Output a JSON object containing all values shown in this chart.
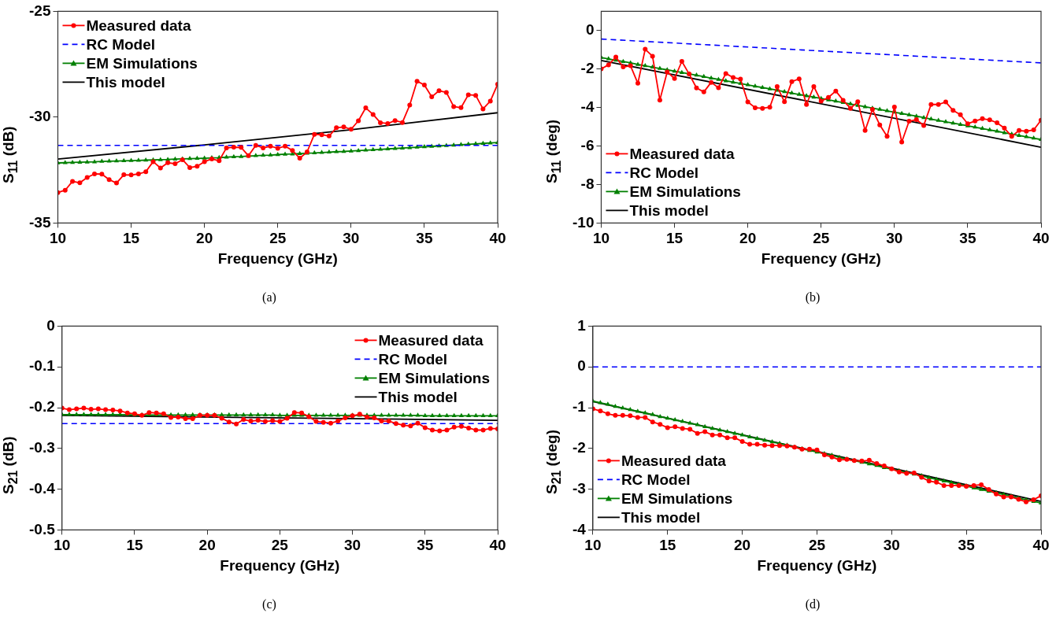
{
  "chart_data": [
    {
      "type": "line",
      "xlabel": "Frequency (GHz)",
      "ylabel": "S$_{11}$ (dB)",
      "annotations": [
        "(a)"
      ],
      "legend": "top left",
      "xlim": [
        10,
        40
      ],
      "xticks": [
        10,
        15,
        20,
        25,
        30,
        35,
        40
      ],
      "ylim": [
        -35,
        -25
      ],
      "yticks": [
        -35,
        -30,
        -25
      ],
      "x": [
        10,
        10.5,
        11,
        11.5,
        12,
        12.5,
        13,
        13.5,
        14,
        14.5,
        15,
        15.5,
        16,
        16.5,
        17,
        17.5,
        18,
        18.5,
        19,
        19.5,
        20,
        20.5,
        21,
        21.5,
        22,
        22.5,
        23,
        23.5,
        24,
        24.5,
        25,
        25.5,
        26,
        26.5,
        27,
        27.5,
        28,
        28.5,
        29,
        29.5,
        30,
        30.5,
        31,
        31.5,
        32,
        32.5,
        33,
        33.5,
        34,
        34.5,
        35,
        35.5,
        36,
        36.5,
        37,
        37.5,
        38,
        38.5,
        39,
        39.5,
        40
      ],
      "series": [
        {
          "name": "Measured data",
          "color": "#ff0000",
          "marker": "circle",
          "line_style": "solid",
          "values": [
            -33.56,
            -33.45,
            -33.03,
            -33.1,
            -32.85,
            -32.68,
            -32.69,
            -32.95,
            -33.11,
            -32.72,
            -32.73,
            -32.68,
            -32.58,
            -32.1,
            -32.4,
            -32.15,
            -32.2,
            -32.01,
            -32.38,
            -32.32,
            -32.1,
            -31.97,
            -32.06,
            -31.45,
            -31.42,
            -31.43,
            -31.82,
            -31.33,
            -31.45,
            -31.37,
            -31.47,
            -31.37,
            -31.57,
            -31.94,
            -31.64,
            -30.81,
            -30.83,
            -30.89,
            -30.5,
            -30.46,
            -30.57,
            -30.17,
            -29.56,
            -29.87,
            -30.26,
            -30.3,
            -30.16,
            -30.25,
            -29.43,
            -28.3,
            -28.48,
            -29.04,
            -28.75,
            -28.83,
            -29.5,
            -29.55,
            -28.94,
            -28.97,
            -29.61,
            -29.24,
            -28.44
          ]
        },
        {
          "name": "RC Model",
          "color": "#0000ff",
          "marker": "none",
          "line_style": "dashed",
          "x": [
            10,
            40
          ],
          "values": [
            -31.33,
            -31.33
          ]
        },
        {
          "name": "EM Simulations",
          "color": "#008000",
          "marker": "triangle",
          "line_style": "solid",
          "values": [
            -32.16,
            -32.15,
            -32.14,
            -32.13,
            -32.12,
            -32.11,
            -32.09,
            -32.08,
            -32.07,
            -32.06,
            -32.05,
            -32.04,
            -32.03,
            -32.02,
            -32.01,
            -32.0,
            -31.98,
            -31.97,
            -31.96,
            -31.95,
            -31.94,
            -31.92,
            -31.91,
            -31.89,
            -31.87,
            -31.86,
            -31.84,
            -31.82,
            -31.8,
            -31.79,
            -31.77,
            -31.75,
            -31.74,
            -31.72,
            -31.7,
            -31.69,
            -31.67,
            -31.65,
            -31.63,
            -31.62,
            -31.6,
            -31.58,
            -31.56,
            -31.54,
            -31.52,
            -31.5,
            -31.48,
            -31.46,
            -31.44,
            -31.42,
            -31.4,
            -31.38,
            -31.36,
            -31.34,
            -31.32,
            -31.3,
            -31.28,
            -31.26,
            -31.24,
            -31.22,
            -31.2
          ]
        },
        {
          "name": "This model",
          "color": "#000000",
          "marker": "none",
          "line_style": "solid",
          "x": [
            10,
            20,
            30,
            40
          ],
          "values": [
            -31.98,
            -31.31,
            -30.59,
            -29.79
          ]
        }
      ]
    },
    {
      "type": "line",
      "xlabel": "Frequency (GHz)",
      "ylabel": "S$_{11}$ (deg)",
      "annotations": [
        "(b)"
      ],
      "legend": "bottom left",
      "xlim": [
        10,
        40
      ],
      "xticks": [
        10,
        15,
        20,
        25,
        30,
        35,
        40
      ],
      "ylim": [
        -10,
        1
      ],
      "yticks": [
        -10,
        -8,
        -6,
        -4,
        -2,
        0
      ],
      "x": [
        10,
        10.5,
        11,
        11.5,
        12,
        12.5,
        13,
        13.5,
        14,
        14.5,
        15,
        15.5,
        16,
        16.5,
        17,
        17.5,
        18,
        18.5,
        19,
        19.5,
        20,
        20.5,
        21,
        21.5,
        22,
        22.5,
        23,
        23.5,
        24,
        24.5,
        25,
        25.5,
        26,
        26.5,
        27,
        27.5,
        28,
        28.5,
        29,
        29.5,
        30,
        30.5,
        31,
        31.5,
        32,
        32.5,
        33,
        33.5,
        34,
        34.5,
        35,
        35.5,
        36,
        36.5,
        37,
        37.5,
        38,
        38.5,
        39,
        39.5,
        40
      ],
      "series": [
        {
          "name": "Measured data",
          "color": "#ff0000",
          "marker": "circle",
          "line_style": "solid",
          "values": [
            -1.99,
            -1.78,
            -1.38,
            -1.89,
            -1.83,
            -2.74,
            -0.97,
            -1.33,
            -3.61,
            -2.15,
            -2.49,
            -1.6,
            -2.26,
            -2.98,
            -3.19,
            -2.69,
            -2.97,
            -2.23,
            -2.44,
            -2.52,
            -3.71,
            -4.01,
            -4.04,
            -3.98,
            -2.91,
            -3.7,
            -2.65,
            -2.51,
            -3.84,
            -2.91,
            -3.67,
            -3.47,
            -3.14,
            -3.62,
            -4.04,
            -3.7,
            -5.19,
            -4.1,
            -4.9,
            -5.5,
            -3.97,
            -5.79,
            -4.71,
            -4.63,
            -4.93,
            -3.84,
            -3.84,
            -3.71,
            -4.15,
            -4.37,
            -4.84,
            -4.7,
            -4.58,
            -4.64,
            -4.79,
            -5.07,
            -5.5,
            -5.19,
            -5.23,
            -5.16,
            -4.66
          ]
        },
        {
          "name": "RC Model",
          "color": "#0000ff",
          "marker": "none",
          "line_style": "dashed",
          "x": [
            10,
            40
          ],
          "values": [
            -0.44,
            -1.68
          ]
        },
        {
          "name": "EM Simulations",
          "color": "#008000",
          "marker": "triangle",
          "line_style": "solid",
          "values": [
            -1.4,
            -1.47,
            -1.54,
            -1.61,
            -1.68,
            -1.76,
            -1.83,
            -1.9,
            -1.97,
            -2.04,
            -2.11,
            -2.18,
            -2.25,
            -2.32,
            -2.39,
            -2.47,
            -2.54,
            -2.61,
            -2.68,
            -2.75,
            -2.82,
            -2.89,
            -2.96,
            -3.03,
            -3.1,
            -3.18,
            -3.25,
            -3.32,
            -3.39,
            -3.46,
            -3.53,
            -3.6,
            -3.67,
            -3.74,
            -3.81,
            -3.89,
            -3.96,
            -4.03,
            -4.1,
            -4.17,
            -4.24,
            -4.31,
            -4.38,
            -4.45,
            -4.52,
            -4.6,
            -4.67,
            -4.74,
            -4.81,
            -4.88,
            -4.95,
            -5.02,
            -5.09,
            -5.16,
            -5.23,
            -5.31,
            -5.38,
            -5.45,
            -5.52,
            -5.59,
            -5.66
          ]
        },
        {
          "name": "This model",
          "color": "#000000",
          "marker": "none",
          "line_style": "solid",
          "x": [
            10,
            40
          ],
          "values": [
            -1.55,
            -6.06
          ]
        }
      ]
    },
    {
      "type": "line",
      "xlabel": "Frequency (GHz)",
      "ylabel": "S$_{21}$ (dB)",
      "annotations": [
        "(c)"
      ],
      "legend": "top right",
      "xlim": [
        10,
        40
      ],
      "xticks": [
        10,
        15,
        20,
        25,
        30,
        35,
        40
      ],
      "ylim": [
        -0.5,
        0
      ],
      "yticks": [
        -0.5,
        -0.4,
        -0.3,
        -0.2,
        -0.1,
        0
      ],
      "x": [
        10,
        10.5,
        11,
        11.5,
        12,
        12.5,
        13,
        13.5,
        14,
        14.5,
        15,
        15.5,
        16,
        16.5,
        17,
        17.5,
        18,
        18.5,
        19,
        19.5,
        20,
        20.5,
        21,
        21.5,
        22,
        22.5,
        23,
        23.5,
        24,
        24.5,
        25,
        25.5,
        26,
        26.5,
        27,
        27.5,
        28,
        28.5,
        29,
        29.5,
        30,
        30.5,
        31,
        31.5,
        32,
        32.5,
        33,
        33.5,
        34,
        34.5,
        35,
        35.5,
        36,
        36.5,
        37,
        37.5,
        38,
        38.5,
        39,
        39.5,
        40
      ],
      "series": [
        {
          "name": "Measured data",
          "color": "#ff0000",
          "marker": "circle",
          "line_style": "solid",
          "values": [
            -0.201,
            -0.205,
            -0.203,
            -0.201,
            -0.204,
            -0.203,
            -0.205,
            -0.206,
            -0.208,
            -0.213,
            -0.215,
            -0.219,
            -0.212,
            -0.213,
            -0.215,
            -0.224,
            -0.223,
            -0.227,
            -0.227,
            -0.219,
            -0.219,
            -0.219,
            -0.226,
            -0.235,
            -0.24,
            -0.229,
            -0.233,
            -0.231,
            -0.234,
            -0.232,
            -0.234,
            -0.226,
            -0.212,
            -0.213,
            -0.222,
            -0.234,
            -0.236,
            -0.238,
            -0.233,
            -0.225,
            -0.22,
            -0.216,
            -0.223,
            -0.225,
            -0.233,
            -0.233,
            -0.239,
            -0.243,
            -0.245,
            -0.238,
            -0.249,
            -0.255,
            -0.257,
            -0.255,
            -0.248,
            -0.246,
            -0.25,
            -0.255,
            -0.255,
            -0.251,
            -0.252
          ]
        },
        {
          "name": "RC Model",
          "color": "#0000ff",
          "marker": "none",
          "line_style": "dashed",
          "x": [
            10,
            40
          ],
          "values": [
            -0.239,
            -0.239
          ]
        },
        {
          "name": "EM Simulations",
          "color": "#008000",
          "marker": "triangle",
          "line_style": "solid",
          "values": [
            -0.217,
            -0.217,
            -0.217,
            -0.217,
            -0.217,
            -0.217,
            -0.217,
            -0.217,
            -0.217,
            -0.217,
            -0.218,
            -0.218,
            -0.218,
            -0.218,
            -0.218,
            -0.218,
            -0.218,
            -0.218,
            -0.218,
            -0.218,
            -0.218,
            -0.218,
            -0.218,
            -0.218,
            -0.218,
            -0.218,
            -0.218,
            -0.218,
            -0.218,
            -0.218,
            -0.219,
            -0.219,
            -0.219,
            -0.219,
            -0.219,
            -0.219,
            -0.219,
            -0.219,
            -0.219,
            -0.219,
            -0.219,
            -0.219,
            -0.219,
            -0.219,
            -0.219,
            -0.219,
            -0.219,
            -0.219,
            -0.219,
            -0.219,
            -0.22,
            -0.22,
            -0.22,
            -0.22,
            -0.22,
            -0.22,
            -0.22,
            -0.22,
            -0.22,
            -0.22,
            -0.22
          ]
        },
        {
          "name": "This model",
          "color": "#000000",
          "marker": "none",
          "line_style": "solid",
          "x": [
            10,
            40
          ],
          "values": [
            -0.219,
            -0.231
          ]
        }
      ]
    },
    {
      "type": "line",
      "xlabel": "Frequency (GHz)",
      "ylabel": "S$_{21}$ (deg)",
      "annotations": [
        "(d)"
      ],
      "legend": "bottom left",
      "xlim": [
        10,
        40
      ],
      "xticks": [
        10,
        15,
        20,
        25,
        30,
        35,
        40
      ],
      "ylim": [
        -4,
        1
      ],
      "yticks": [
        -4,
        -3,
        -2,
        -1,
        0,
        1
      ],
      "x": [
        10,
        10.5,
        11,
        11.5,
        12,
        12.5,
        13,
        13.5,
        14,
        14.5,
        15,
        15.5,
        16,
        16.5,
        17,
        17.5,
        18,
        18.5,
        19,
        19.5,
        20,
        20.5,
        21,
        21.5,
        22,
        22.5,
        23,
        23.5,
        24,
        24.5,
        25,
        25.5,
        26,
        26.5,
        27,
        27.5,
        28,
        28.5,
        29,
        29.5,
        30,
        30.5,
        31,
        31.5,
        32,
        32.5,
        33,
        33.5,
        34,
        34.5,
        35,
        35.5,
        36,
        36.5,
        37,
        37.5,
        38,
        38.5,
        39,
        39.5,
        40
      ],
      "series": [
        {
          "name": "Measured data",
          "color": "#ff0000",
          "marker": "circle",
          "line_style": "solid",
          "values": [
            -1.03,
            -1.08,
            -1.15,
            -1.19,
            -1.19,
            -1.2,
            -1.24,
            -1.24,
            -1.35,
            -1.41,
            -1.49,
            -1.47,
            -1.51,
            -1.53,
            -1.63,
            -1.59,
            -1.67,
            -1.67,
            -1.74,
            -1.74,
            -1.83,
            -1.9,
            -1.9,
            -1.92,
            -1.93,
            -1.93,
            -1.94,
            -1.97,
            -2.02,
            -2.02,
            -2.04,
            -2.16,
            -2.21,
            -2.28,
            -2.27,
            -2.3,
            -2.31,
            -2.29,
            -2.37,
            -2.43,
            -2.5,
            -2.58,
            -2.61,
            -2.6,
            -2.71,
            -2.8,
            -2.83,
            -2.91,
            -2.91,
            -2.91,
            -2.93,
            -2.91,
            -2.89,
            -3.01,
            -3.12,
            -3.19,
            -3.19,
            -3.25,
            -3.31,
            -3.26,
            -3.16
          ]
        },
        {
          "name": "RC Model",
          "color": "#0000ff",
          "marker": "none",
          "line_style": "dashed",
          "x": [
            10,
            40
          ],
          "values": [
            0,
            0
          ]
        },
        {
          "name": "EM Simulations",
          "color": "#008000",
          "marker": "triangle",
          "line_style": "solid",
          "values": [
            -0.84,
            -0.88,
            -0.92,
            -0.97,
            -1.01,
            -1.05,
            -1.09,
            -1.13,
            -1.17,
            -1.22,
            -1.26,
            -1.3,
            -1.34,
            -1.38,
            -1.42,
            -1.47,
            -1.51,
            -1.55,
            -1.59,
            -1.63,
            -1.67,
            -1.72,
            -1.76,
            -1.8,
            -1.84,
            -1.88,
            -1.92,
            -1.97,
            -2.01,
            -2.05,
            -2.09,
            -2.13,
            -2.17,
            -2.22,
            -2.26,
            -2.3,
            -2.34,
            -2.38,
            -2.42,
            -2.47,
            -2.51,
            -2.55,
            -2.59,
            -2.63,
            -2.67,
            -2.72,
            -2.76,
            -2.8,
            -2.84,
            -2.88,
            -2.92,
            -2.97,
            -3.01,
            -3.05,
            -3.09,
            -3.13,
            -3.17,
            -3.22,
            -3.26,
            -3.3,
            -3.34
          ]
        },
        {
          "name": "This model",
          "color": "#000000",
          "marker": "none",
          "line_style": "solid",
          "x": [
            10,
            40
          ],
          "values": [
            -0.85,
            -3.3
          ]
        }
      ]
    }
  ]
}
